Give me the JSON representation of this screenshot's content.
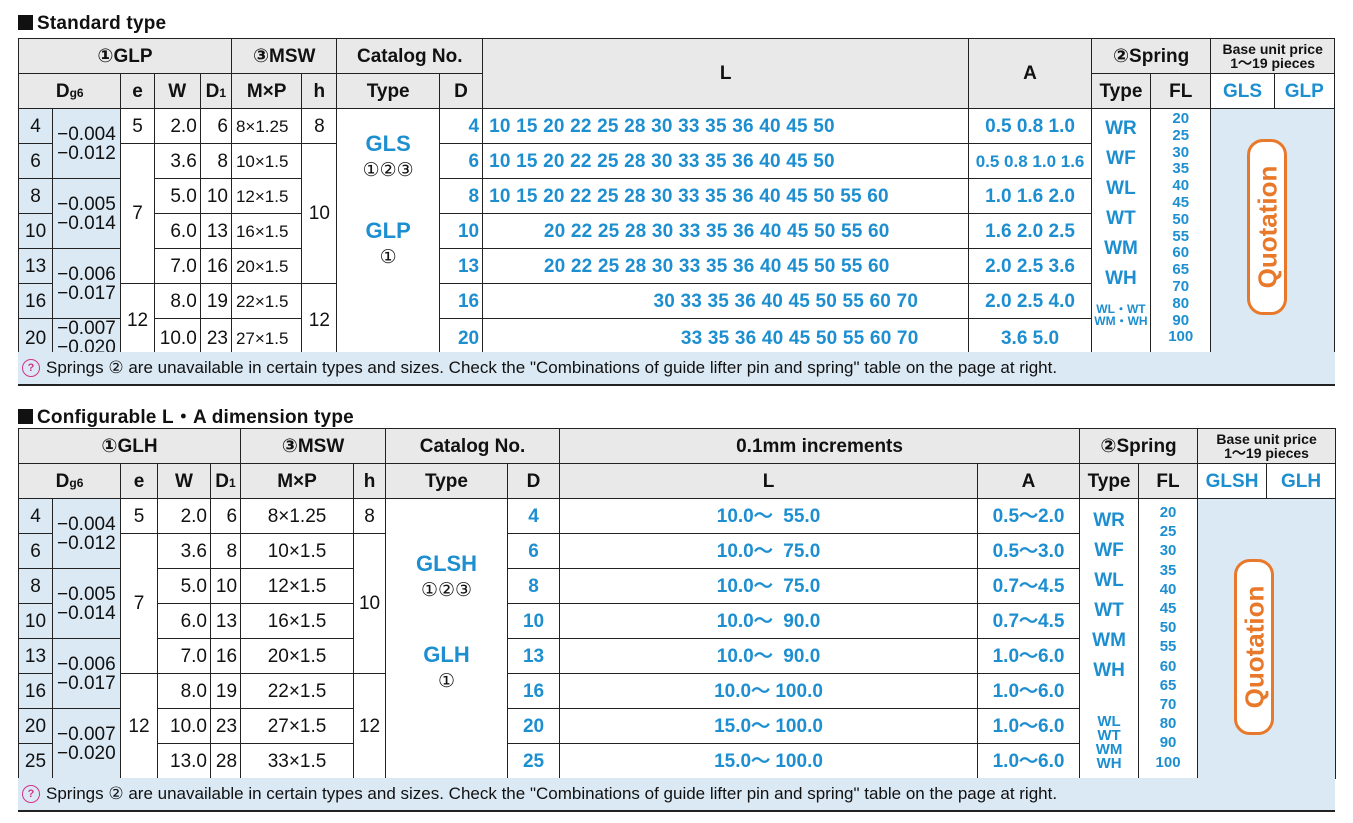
{
  "standard": {
    "title": "Standard type",
    "headers": {
      "glp": "①GLP",
      "msw": "③MSW",
      "catalog": "Catalog No.",
      "l": "L",
      "a": "A",
      "spring": "②Spring",
      "price_line1": "Base unit price",
      "price_line2": "1～19 pieces",
      "d": "D",
      "dsub": "g6",
      "e": "e",
      "w": "W",
      "d1": "D",
      "d1sub": "1",
      "mxp": "M×P",
      "h": "h",
      "type": "Type",
      "D": "D",
      "stype": "Type",
      "fl": "FL",
      "p1": "GLS",
      "p2": "GLP"
    },
    "rows": [
      {
        "d": "4",
        "tol1": "−0.004",
        "tol2": "−0.012",
        "e": "5",
        "w": "2.0",
        "d1": "6",
        "mxp": "8×1.25",
        "h": "8",
        "D": "4",
        "L": "10 15 20 22 25 28 30 33 35 36 40 45 50",
        "A": "0.5  0.8  1.0"
      },
      {
        "d": "6",
        "tol1": "",
        "tol2": "",
        "e": "",
        "w": "3.6",
        "d1": "8",
        "mxp": "10×1.5",
        "h": "",
        "D": "6",
        "L": "10 15 20 22 25 28 30 33 35 36 40 45 50",
        "A": "0.5 0.8 1.0 1.6"
      },
      {
        "d": "8",
        "tol1": "−0.005",
        "tol2": "−0.014",
        "e": "7",
        "w": "5.0",
        "d1": "10",
        "mxp": "12×1.5",
        "h": "10",
        "D": "8",
        "L": "10 15 20 22 25 28 30 33 35 36 40 45 50 55 60",
        "A": "1.0  1.6  2.0"
      },
      {
        "d": "10",
        "tol1": "",
        "tol2": "",
        "e": "",
        "w": "6.0",
        "d1": "13",
        "mxp": "16×1.5",
        "h": "",
        "D": "10",
        "L": "          20 22 25 28 30 33 35 36 40 45 50 55 60",
        "A": "1.6  2.0  2.5"
      },
      {
        "d": "13",
        "tol1": "−0.006",
        "tol2": "−0.017",
        "e": "",
        "w": "7.0",
        "d1": "16",
        "mxp": "20×1.5",
        "h": "",
        "D": "13",
        "L": "          20 22 25 28 30 33 35 36 40 45 50 55 60",
        "A": "2.0  2.5  3.6"
      },
      {
        "d": "16",
        "tol1": "",
        "tol2": "",
        "e": "12",
        "w": "8.0",
        "d1": "19",
        "mxp": "22×1.5",
        "h": "12",
        "D": "16",
        "L": "                              30 33 35 36 40 45 50 55 60 70",
        "A": "2.0  2.5  4.0"
      },
      {
        "d": "20",
        "tol1": "−0.007",
        "tol2": "−0.020",
        "e": "",
        "w": "10.0",
        "d1": "23",
        "mxp": "27×1.5",
        "h": "",
        "D": "20",
        "L": "                                   33 35 36 40 45 50 55 60 70",
        "A": "3.6  5.0"
      }
    ],
    "types": [
      {
        "name": "GLS",
        "spec": "①②③"
      },
      {
        "name": "GLP",
        "spec": "①"
      }
    ],
    "springs": [
      "WR",
      "WF",
      "WL",
      "WT",
      "WM",
      "WH"
    ],
    "springs_small": [
      "WL・WT",
      "WM・WH"
    ],
    "fl": [
      "20",
      "25",
      "30",
      "35",
      "40",
      "45",
      "50",
      "55",
      "60",
      "65",
      "70",
      "80",
      "90",
      "100"
    ],
    "quotation": "Quotation",
    "note": "Springs ② are unavailable in certain types and sizes. Check the \"Combinations of guide lifter pin and spring\" table on the page at right."
  },
  "config": {
    "title": "Configurable L・A dimension type",
    "headers": {
      "glh": "①GLH",
      "msw": "③MSW",
      "catalog": "Catalog No.",
      "inc": "0.1mm increments",
      "spring": "②Spring",
      "price_line1": "Base unit price",
      "price_line2": "1～19 pieces",
      "d": "D",
      "dsub": "g6",
      "e": "e",
      "w": "W",
      "d1": "D",
      "d1sub": "1",
      "mxp": "M×P",
      "h": "h",
      "type": "Type",
      "D": "D",
      "l": "L",
      "a": "A",
      "stype": "Type",
      "fl": "FL",
      "p1": "GLSH",
      "p2": "GLH"
    },
    "rows": [
      {
        "d": "4",
        "tol1": "−0.004",
        "tol2": "−0.012",
        "e": "5",
        "w": "2.0",
        "d1": "6",
        "mxp": "8×1.25",
        "h": "8",
        "D": "4",
        "L": "10.0～  55.0",
        "A": "0.5～2.0"
      },
      {
        "d": "6",
        "tol1": "",
        "tol2": "",
        "e": "",
        "w": "3.6",
        "d1": "8",
        "mxp": "10×1.5",
        "h": "",
        "D": "6",
        "L": "10.0～  75.0",
        "A": "0.5～3.0"
      },
      {
        "d": "8",
        "tol1": "−0.005",
        "tol2": "−0.014",
        "e": "7",
        "w": "5.0",
        "d1": "10",
        "mxp": "12×1.5",
        "h": "10",
        "D": "8",
        "L": "10.0～  75.0",
        "A": "0.7～4.5"
      },
      {
        "d": "10",
        "tol1": "",
        "tol2": "",
        "e": "",
        "w": "6.0",
        "d1": "13",
        "mxp": "16×1.5",
        "h": "",
        "D": "10",
        "L": "10.0～  90.0",
        "A": "0.7～4.5"
      },
      {
        "d": "13",
        "tol1": "−0.006",
        "tol2": "−0.017",
        "e": "",
        "w": "7.0",
        "d1": "16",
        "mxp": "20×1.5",
        "h": "",
        "D": "13",
        "L": "10.0～  90.0",
        "A": "1.0～6.0"
      },
      {
        "d": "16",
        "tol1": "",
        "tol2": "",
        "e": "",
        "w": "8.0",
        "d1": "19",
        "mxp": "22×1.5",
        "h": "12",
        "D": "16",
        "L": "10.0～ 100.0",
        "A": "1.0～6.0"
      },
      {
        "d": "20",
        "tol1": "−0.007",
        "tol2": "−0.020",
        "e": "12",
        "w": "10.0",
        "d1": "23",
        "mxp": "27×1.5",
        "h": "",
        "D": "20",
        "L": "15.0～ 100.0",
        "A": "1.0～6.0"
      },
      {
        "d": "25",
        "tol1": "",
        "tol2": "",
        "e": "",
        "w": "13.0",
        "d1": "28",
        "mxp": "33×1.5",
        "h": "",
        "D": "25",
        "L": "15.0～ 100.0",
        "A": "1.0～6.0"
      }
    ],
    "types": [
      {
        "name": "GLSH",
        "spec": "①②③"
      },
      {
        "name": "GLH",
        "spec": "①"
      }
    ],
    "springs": [
      "WR",
      "WF",
      "WL",
      "WT",
      "WM",
      "WH"
    ],
    "springs_small": [
      "WL",
      "WT",
      "WM",
      "WH"
    ],
    "fl": [
      "20",
      "25",
      "30",
      "35",
      "40",
      "45",
      "50",
      "55",
      "60",
      "65",
      "70",
      "80",
      "90",
      "100"
    ],
    "quotation": "Quotation",
    "note": "Springs ② are unavailable in certain types and sizes. Check the \"Combinations of guide lifter pin and spring\" table on the page at right."
  }
}
